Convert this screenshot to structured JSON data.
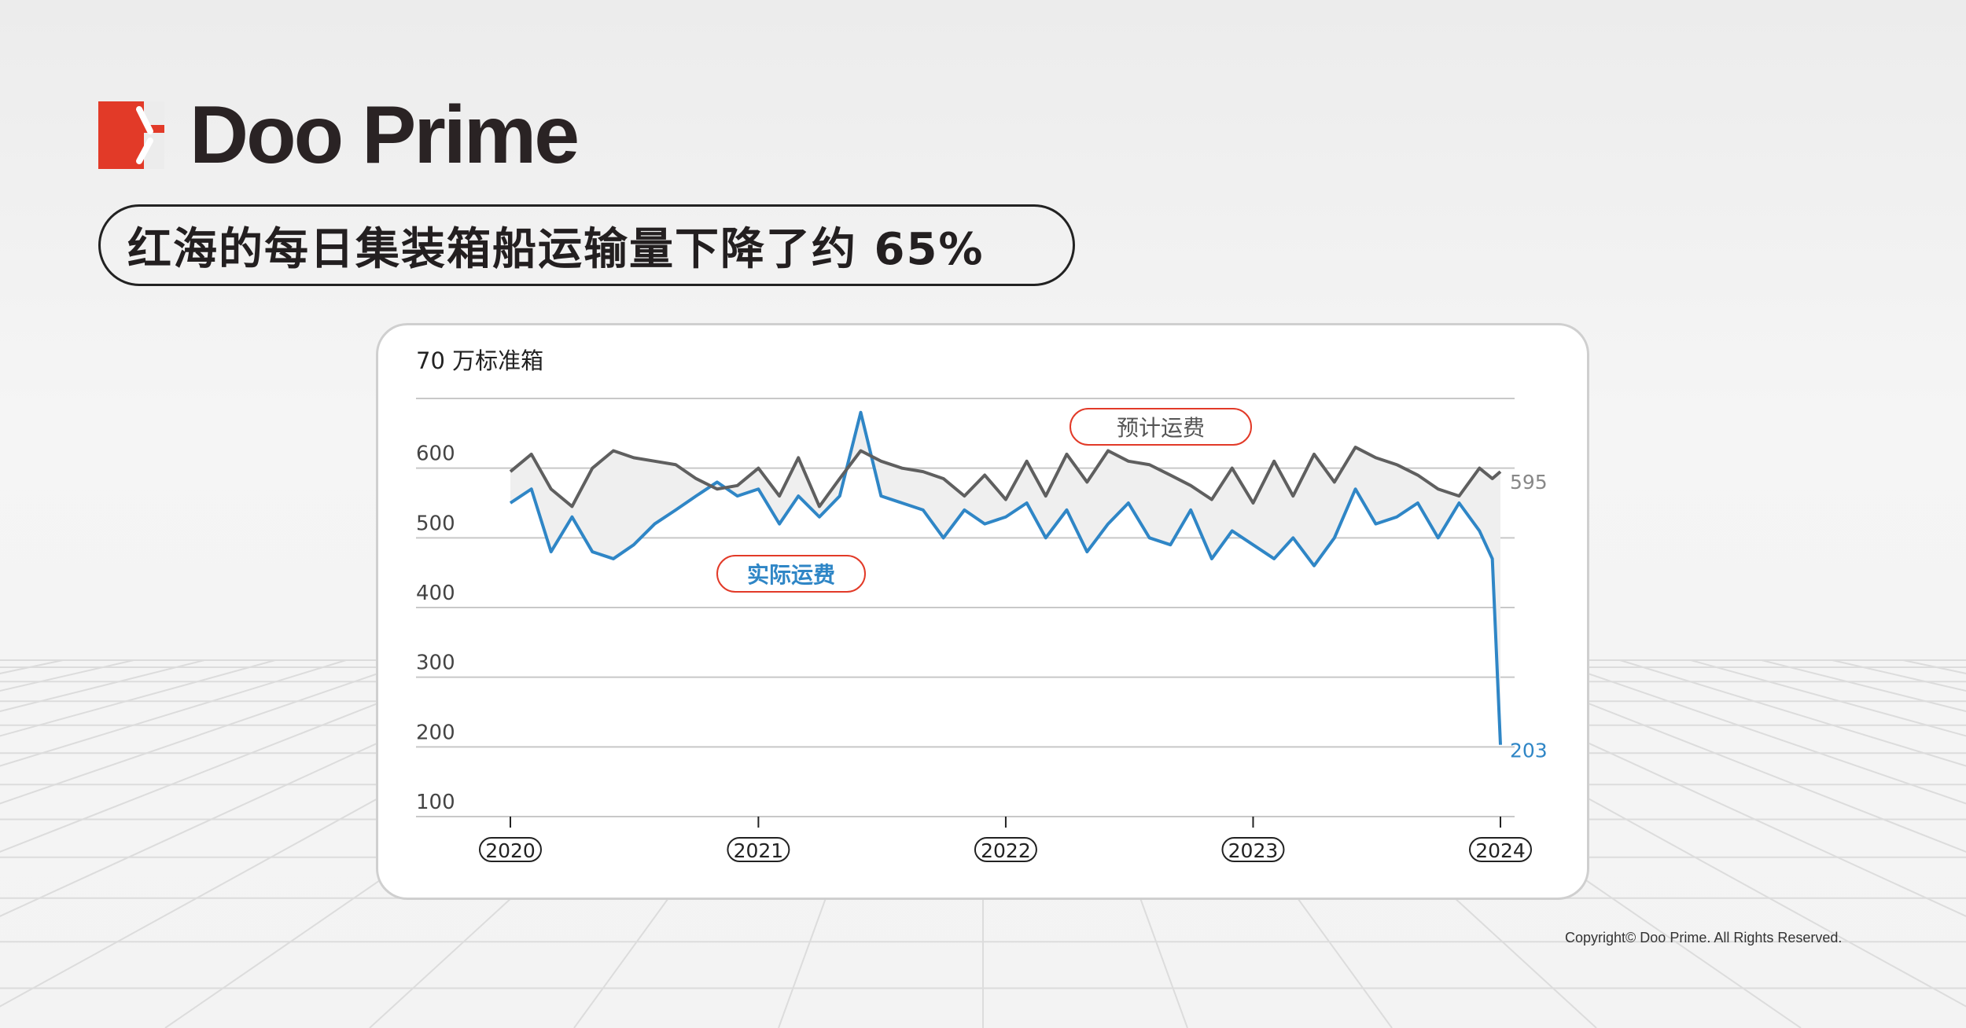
{
  "brand": {
    "name": "Doo Prime",
    "accent": "#e23a28"
  },
  "title": "红海的每日集装箱船运输量下降了约 65%",
  "copyright": "Copyright© Doo Prime. All Rights Reserved.",
  "chart_data": {
    "type": "line",
    "ylabel": "70 万标准箱",
    "ylim": [
      100,
      700
    ],
    "yticks": [
      100,
      200,
      300,
      400,
      500,
      600
    ],
    "xticks": [
      "2020",
      "2021",
      "2022",
      "2023",
      "2024"
    ],
    "grid": true,
    "fill_between": true,
    "colors": {
      "expected": "#5f5f5f",
      "actual": "#2f86c6",
      "label_border": "#e23a28",
      "fill": "#efefef",
      "grid": "#c8c8c8"
    },
    "x": [
      "2020-01",
      "2020-02",
      "2020-03",
      "2020-04",
      "2020-05",
      "2020-06",
      "2020-07",
      "2020-08",
      "2020-09",
      "2020-10",
      "2020-11",
      "2020-12",
      "2021-01",
      "2021-02",
      "2021-03",
      "2021-04",
      "2021-05",
      "2021-06",
      "2021-07",
      "2021-08",
      "2021-09",
      "2021-10",
      "2021-11",
      "2021-12",
      "2022-01",
      "2022-02",
      "2022-03",
      "2022-04",
      "2022-05",
      "2022-06",
      "2022-07",
      "2022-08",
      "2022-09",
      "2022-10",
      "2022-11",
      "2022-12",
      "2023-01",
      "2023-02",
      "2023-03",
      "2023-04",
      "2023-05",
      "2023-06",
      "2023-07",
      "2023-08",
      "2023-09",
      "2023-10",
      "2023-11",
      "2023-12",
      "2023-12-20",
      "2024-01"
    ],
    "series": [
      {
        "name": "预计运费",
        "end_label": "595",
        "values": [
          595,
          620,
          570,
          545,
          600,
          625,
          615,
          610,
          605,
          585,
          570,
          575,
          600,
          560,
          615,
          545,
          585,
          625,
          610,
          600,
          595,
          585,
          560,
          590,
          555,
          610,
          560,
          620,
          580,
          625,
          610,
          605,
          590,
          575,
          555,
          600,
          550,
          610,
          560,
          620,
          580,
          630,
          615,
          605,
          590,
          570,
          560,
          600,
          585,
          595
        ]
      },
      {
        "name": "实际运费",
        "end_label": "203",
        "values": [
          550,
          570,
          480,
          530,
          480,
          470,
          490,
          520,
          540,
          560,
          580,
          560,
          570,
          520,
          560,
          530,
          560,
          680,
          560,
          550,
          540,
          500,
          540,
          520,
          530,
          550,
          500,
          540,
          480,
          520,
          550,
          500,
          490,
          540,
          470,
          510,
          490,
          470,
          500,
          460,
          500,
          570,
          520,
          530,
          550,
          500,
          550,
          510,
          470,
          203
        ]
      }
    ]
  }
}
